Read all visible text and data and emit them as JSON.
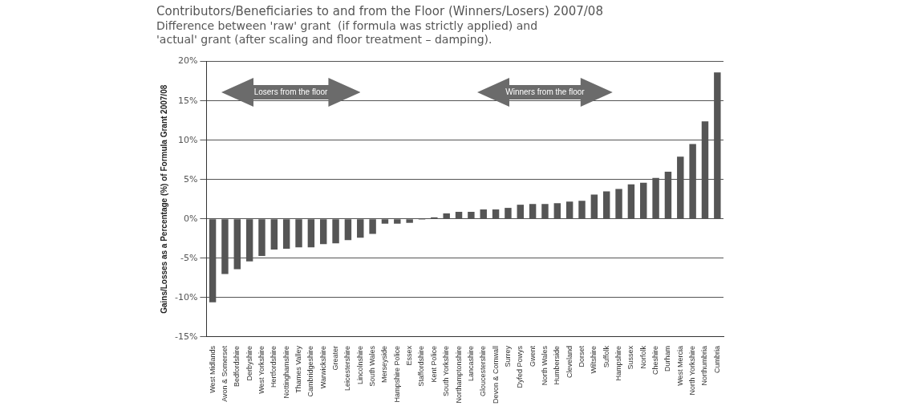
{
  "chart_data": {
    "type": "bar",
    "title": "Contributors/Beneficiaries to and from the Floor (Winners/Losers) 2007/08",
    "subtitle": [
      "Difference between 'raw' grant  (if formula was strictly applied) and",
      "'actual' grant (after scaling and floor treatment – damping)."
    ],
    "ylabel": "Gains/Losses as a Percentage (%) of Formula Grant 2007/08",
    "categories": [
      "West Midlands",
      "Avon & Somerset",
      "Bedfordshire",
      "Derbyshire",
      "West Yorkshire",
      "Hertfordshire",
      "Nottinghamshire",
      "Thames Valley",
      "Cambridgeshire",
      "Warwickshire",
      "Greater",
      "Leicestershire",
      "Lincolnshire",
      "South Wales",
      "Merseyside",
      "Hampshire Police",
      "Essex",
      "Staffordshire",
      "Kent Police",
      "South Yorkshire",
      "Northamptonshire",
      "Lancashire",
      "Gloucestershire",
      "Devon & Cornwall",
      "Surrey",
      "Dyfed Powys",
      "Gwent",
      "North Wales",
      "Humberside",
      "Cleveland",
      "Dorset",
      "Wiltshire",
      "Suffolk",
      "Hampshire",
      "Sussex",
      "Norfolk",
      "Cheshire",
      "Durham",
      "West Mercia",
      "North Yorkshire",
      "Northumbria",
      "Cumbria"
    ],
    "values": [
      -10.6,
      -7.0,
      -6.4,
      -5.4,
      -4.7,
      -3.9,
      -3.8,
      -3.6,
      -3.6,
      -3.2,
      -3.1,
      -2.7,
      -2.4,
      -1.9,
      -0.6,
      -0.6,
      -0.5,
      -0.1,
      0.2,
      0.7,
      0.9,
      0.9,
      1.2,
      1.2,
      1.4,
      1.8,
      1.9,
      1.9,
      2.0,
      2.2,
      2.3,
      3.1,
      3.5,
      3.8,
      4.4,
      4.6,
      5.2,
      6.0,
      7.9,
      9.5,
      12.4,
      18.6
    ],
    "color": "#555555",
    "ylim": [
      -15,
      20
    ],
    "yticks": [
      {
        "value": -15,
        "label": "-15%"
      },
      {
        "value": -10,
        "label": "-10%"
      },
      {
        "value": -5,
        "label": "-5%"
      },
      {
        "value": 0,
        "label": "0%"
      },
      {
        "value": 5,
        "label": "5%"
      },
      {
        "value": 10,
        "label": "10%"
      },
      {
        "value": 15,
        "label": "15%"
      },
      {
        "value": 20,
        "label": "20%"
      }
    ],
    "grid": "y",
    "annotations": [
      "Losers from the floor",
      "Winners from the floor"
    ]
  }
}
